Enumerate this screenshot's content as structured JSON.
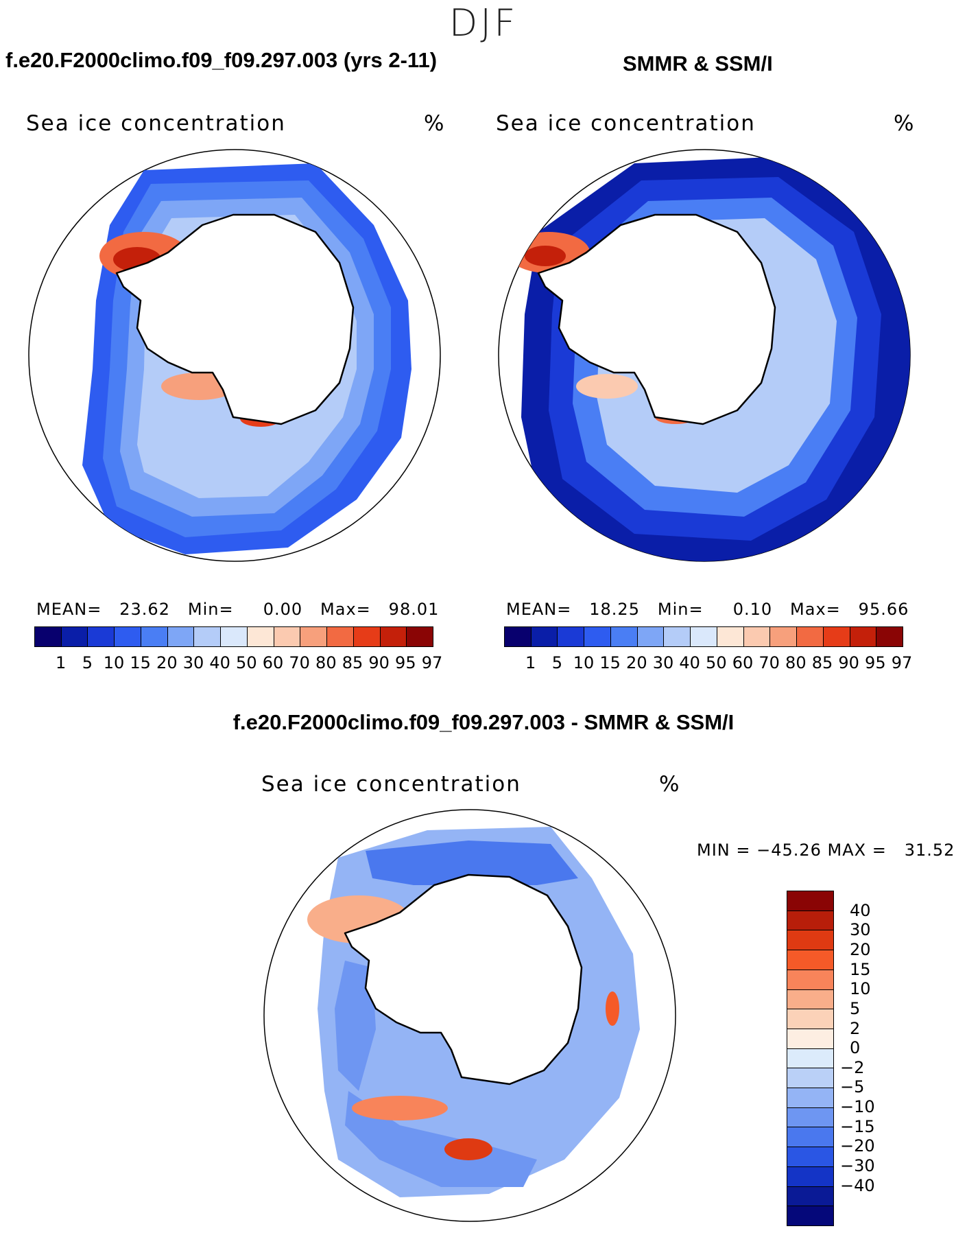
{
  "season": "DJF",
  "panels": [
    {
      "title": "f.e20.F2000climo.f09_f09.297.003 (yrs 2-11)",
      "variable": "Sea ice concentration",
      "units": "%",
      "mean_label": "MEAN=",
      "mean": "23.62",
      "min_label": "Min=",
      "min": "0.00",
      "max_label": "Max=",
      "max": "98.01"
    },
    {
      "title": "SMMR & SSM/I",
      "variable": "Sea ice concentration",
      "units": "%",
      "mean_label": "MEAN=",
      "mean": "18.25",
      "min_label": "Min=",
      "min": "0.10",
      "max_label": "Max=",
      "max": "95.66"
    }
  ],
  "diff_panel": {
    "title": "f.e20.F2000climo.f09_f09.297.003 - SMMR & SSM/I",
    "variable": "Sea ice concentration",
    "units": "%",
    "minmax_text": "MIN = −45.26 MAX =   31.52"
  },
  "abs_colorbar": {
    "colors": [
      "#08006e",
      "#0a1ea8",
      "#1a3ad6",
      "#2e5cf0",
      "#4a7ef4",
      "#7ea6f6",
      "#b4ccf8",
      "#dae8fb",
      "#fde7d6",
      "#fbcab0",
      "#f7a07c",
      "#f26a42",
      "#e63c18",
      "#c4200a",
      "#8a0505"
    ],
    "labels": [
      "1",
      "5",
      "10",
      "15",
      "20",
      "30",
      "40",
      "50",
      "60",
      "70",
      "80",
      "85",
      "90",
      "95",
      "97"
    ]
  },
  "diff_colorbar": {
    "colors": [
      "#8a0505",
      "#b81e0a",
      "#df3a12",
      "#f55a28",
      "#f8845a",
      "#f9ae8a",
      "#fbd2b8",
      "#fdeee2",
      "#dcebfb",
      "#bad0f7",
      "#94b4f5",
      "#6e96f2",
      "#4a78ee",
      "#2a56e4",
      "#1434c6",
      "#0a1a96",
      "#05087a"
    ],
    "labels": [
      "40",
      "30",
      "20",
      "15",
      "10",
      "5",
      "2",
      "0",
      "−2",
      "−5",
      "−10",
      "−15",
      "−20",
      "−30",
      "−40"
    ]
  }
}
